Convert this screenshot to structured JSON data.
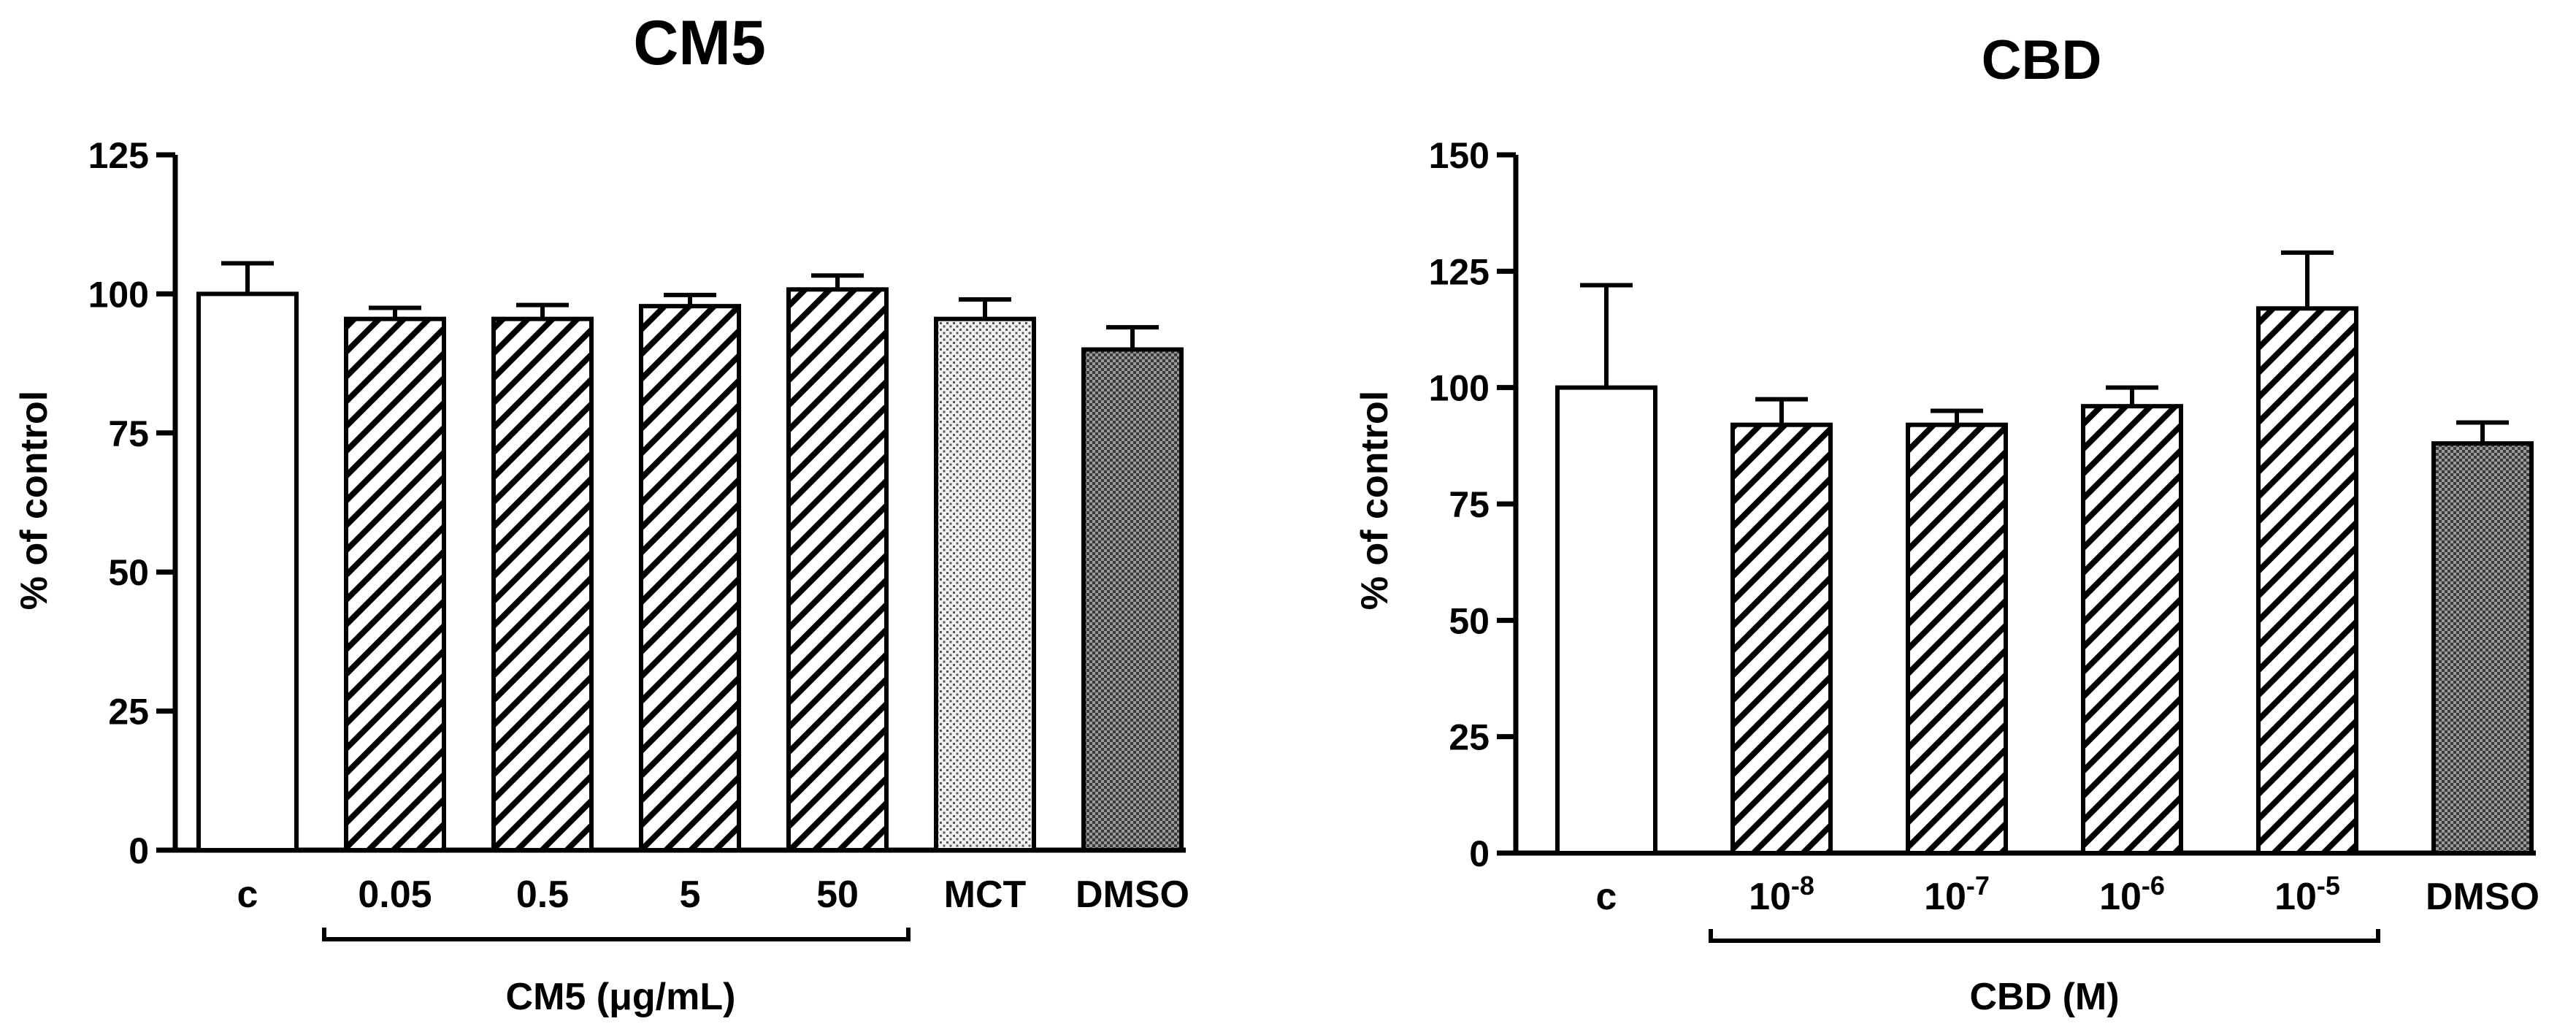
{
  "chart_data": [
    {
      "type": "bar",
      "title": "CM5",
      "ylabel": "% of control",
      "xlabel": "CM5 (μg/mL)",
      "ylim": [
        0,
        125
      ],
      "yticks": [
        "0",
        "25",
        "50",
        "75",
        "100",
        "125"
      ],
      "categories": [
        "c",
        "0.05",
        "0.5",
        "5",
        "50",
        "MCT",
        "DMSO"
      ],
      "values": [
        100,
        95.5,
        95.5,
        97.8,
        100.8,
        95.5,
        90
      ],
      "errors": [
        5.5,
        2,
        2.5,
        2,
        2.5,
        3.5,
        4
      ],
      "fills": [
        "white",
        "hatch",
        "hatch",
        "hatch",
        "hatch",
        "dots-light",
        "dots-dense"
      ],
      "bracket": {
        "from": "0.05",
        "to": "50"
      },
      "grid": false
    },
    {
      "type": "bar",
      "title": "CBD",
      "ylabel": "% of control",
      "xlabel": "CBD (M)",
      "ylim": [
        0,
        150
      ],
      "yticks": [
        "0",
        "25",
        "50",
        "75",
        "100",
        "125",
        "150"
      ],
      "categories": [
        "c",
        "10-8",
        "10-7",
        "10-6",
        "10-5",
        "DMSO"
      ],
      "category_labels": [
        {
          "base": "c",
          "exp": ""
        },
        {
          "base": "10",
          "exp": "-8"
        },
        {
          "base": "10",
          "exp": "-7"
        },
        {
          "base": "10",
          "exp": "-6"
        },
        {
          "base": "10",
          "exp": "-5"
        },
        {
          "base": "DMSO",
          "exp": ""
        }
      ],
      "values": [
        100,
        92,
        92,
        96,
        117,
        88
      ],
      "errors": [
        22,
        5.5,
        3,
        4,
        12,
        4.5
      ],
      "fills": [
        "white",
        "hatch",
        "hatch",
        "hatch",
        "hatch",
        "dots-dense"
      ],
      "bracket": {
        "from": "10-8",
        "to": "10-5"
      },
      "grid": false
    }
  ]
}
